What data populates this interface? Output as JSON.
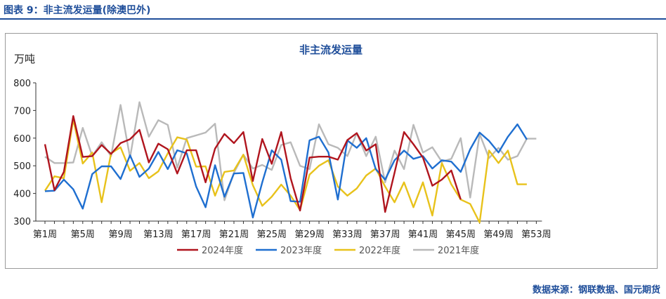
{
  "figure_label": "图表 9：非主流发运量(除澳巴外)",
  "source": "数据来源：钢联数据、国元期货",
  "chart_data": {
    "type": "line",
    "title": "非主流发运量",
    "ylabel": "万吨",
    "ylim": [
      300,
      800
    ],
    "yticks": [
      300,
      400,
      500,
      600,
      700,
      800
    ],
    "x_tick_labels": [
      "第1周",
      "第5周",
      "第9周",
      "第13周",
      "第17周",
      "第21周",
      "第25周",
      "第29周",
      "第33周",
      "第37周",
      "第41周",
      "第45周",
      "第49周",
      "第53周"
    ],
    "x_tick_weeks": [
      1,
      5,
      9,
      13,
      17,
      21,
      25,
      29,
      33,
      37,
      41,
      45,
      49,
      53
    ],
    "grid": false,
    "legend_position": "bottom",
    "series": [
      {
        "name": "2024年度",
        "color": "#b0151e",
        "x": [
          1,
          2,
          3,
          4,
          5,
          6,
          7,
          8,
          9,
          10,
          11,
          12,
          13,
          14,
          15,
          16,
          17,
          18,
          19,
          20,
          21,
          22,
          23,
          24,
          25,
          26,
          27,
          28,
          29,
          30,
          31,
          32,
          33,
          34,
          35,
          36,
          37,
          38,
          39,
          40,
          41,
          42,
          43,
          44,
          45
        ],
        "values": [
          578,
          412,
          478,
          680,
          532,
          535,
          575,
          543,
          582,
          596,
          630,
          512,
          580,
          560,
          472,
          556,
          556,
          440,
          562,
          615,
          582,
          622,
          445,
          597,
          507,
          622,
          455,
          338,
          530,
          533,
          533,
          522,
          593,
          618,
          555,
          578,
          333,
          475,
          622,
          578,
          530,
          428,
          450,
          483,
          378
        ]
      },
      {
        "name": "2023年度",
        "color": "#1f6fd0",
        "x": [
          1,
          2,
          3,
          4,
          5,
          6,
          7,
          8,
          9,
          10,
          11,
          12,
          13,
          14,
          15,
          16,
          17,
          18,
          19,
          20,
          21,
          22,
          23,
          24,
          25,
          26,
          27,
          28,
          29,
          30,
          31,
          32,
          33,
          34,
          35,
          36,
          37,
          38,
          39,
          40,
          41,
          42,
          43,
          44,
          45,
          46,
          47,
          48,
          49,
          50,
          51,
          52
        ],
        "values": [
          408,
          410,
          450,
          415,
          345,
          470,
          498,
          498,
          452,
          538,
          460,
          490,
          550,
          488,
          556,
          545,
          425,
          350,
          502,
          388,
          472,
          474,
          313,
          440,
          556,
          522,
          372,
          370,
          592,
          605,
          548,
          378,
          592,
          565,
          600,
          488,
          450,
          520,
          555,
          525,
          535,
          490,
          520,
          515,
          478,
          560,
          620,
          590,
          548,
          605,
          650,
          595
        ]
      },
      {
        "name": "2022年度",
        "color": "#e8c21b",
        "x": [
          1,
          2,
          3,
          4,
          5,
          6,
          7,
          8,
          9,
          10,
          11,
          12,
          13,
          14,
          15,
          16,
          17,
          18,
          19,
          20,
          21,
          22,
          23,
          24,
          25,
          26,
          27,
          28,
          29,
          30,
          31,
          32,
          33,
          34,
          35,
          36,
          37,
          38,
          39,
          40,
          41,
          42,
          43,
          44,
          45,
          46,
          47,
          48,
          49,
          50,
          51,
          52
        ],
        "values": [
          410,
          462,
          455,
          668,
          508,
          548,
          368,
          545,
          567,
          482,
          510,
          455,
          480,
          545,
          603,
          595,
          497,
          498,
          392,
          478,
          483,
          540,
          430,
          355,
          388,
          432,
          392,
          340,
          468,
          500,
          520,
          425,
          392,
          418,
          465,
          490,
          425,
          368,
          440,
          350,
          440,
          320,
          510,
          433,
          378,
          362,
          295,
          555,
          510,
          555,
          433,
          433
        ]
      },
      {
        "name": "2021年度",
        "color": "#b9b9b9",
        "x": [
          1,
          2,
          3,
          4,
          5,
          6,
          7,
          8,
          9,
          10,
          11,
          12,
          13,
          14,
          15,
          16,
          17,
          18,
          19,
          20,
          21,
          22,
          23,
          24,
          25,
          26,
          27,
          28,
          29,
          30,
          31,
          32,
          33,
          34,
          35,
          36,
          37,
          38,
          39,
          40,
          41,
          42,
          43,
          44,
          45,
          46,
          47,
          48,
          49,
          50,
          51,
          52,
          53
        ],
        "values": [
          533,
          510,
          510,
          512,
          637,
          535,
          585,
          535,
          720,
          530,
          730,
          605,
          665,
          648,
          493,
          600,
          610,
          620,
          652,
          375,
          475,
          540,
          490,
          503,
          485,
          575,
          585,
          500,
          488,
          650,
          578,
          565,
          535,
          618,
          535,
          605,
          440,
          555,
          488,
          648,
          548,
          567,
          515,
          525,
          600,
          385,
          615,
          528,
          565,
          522,
          535,
          598,
          598
        ]
      }
    ]
  }
}
